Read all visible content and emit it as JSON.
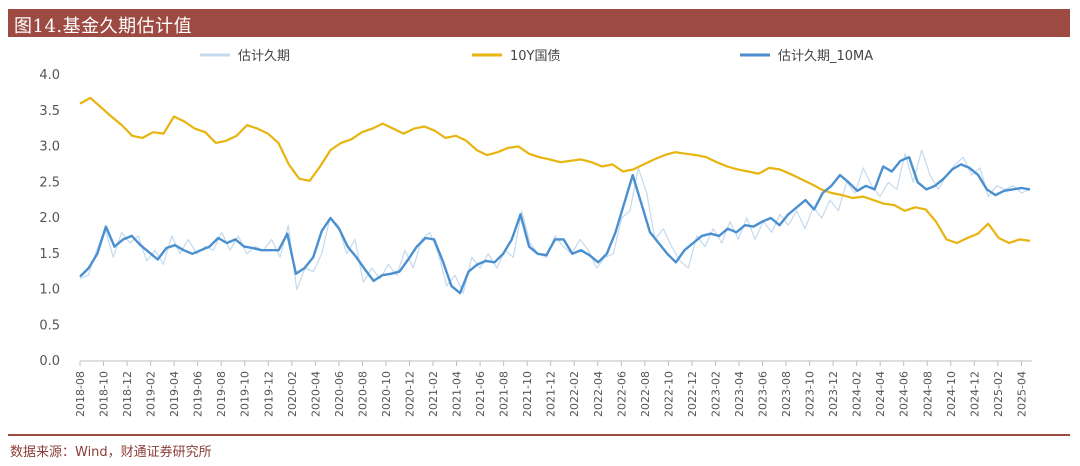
{
  "header": {
    "title": "图14.基金久期估计值"
  },
  "footer": {
    "source": "数据来源：Wind，财通证券研究所"
  },
  "chart_data": {
    "type": "line",
    "title": "图14.基金久期估计值",
    "xlabel": "",
    "ylabel": "",
    "ylim": [
      0,
      4.0
    ],
    "yticks": [
      "0.0",
      "0.5",
      "1.0",
      "1.5",
      "2.0",
      "2.5",
      "3.0",
      "3.5",
      "4.0"
    ],
    "xticks": [
      "2018-08",
      "2018-10",
      "2018-12",
      "2019-02",
      "2019-04",
      "2019-06",
      "2019-08",
      "2019-10",
      "2019-12",
      "2020-02",
      "2020-04",
      "2020-06",
      "2020-08",
      "2020-10",
      "2020-12",
      "2021-02",
      "2021-04",
      "2021-06",
      "2021-08",
      "2021-10",
      "2021-12",
      "2022-02",
      "2022-04",
      "2022-06",
      "2022-08",
      "2022-10",
      "2022-12",
      "2023-02",
      "2023-04",
      "2023-06",
      "2023-08",
      "2023-10",
      "2023-12",
      "2024-02",
      "2024-04",
      "2024-06",
      "2024-08",
      "2024-10",
      "2024-12",
      "2025-02",
      "2025-04"
    ],
    "legend_position": "top",
    "grid": false,
    "x_start": "2018-08",
    "x_end": "2025-05",
    "series": [
      {
        "name": "估计久期",
        "color": "#c5daee",
        "values": [
          1.15,
          1.2,
          1.55,
          1.85,
          1.45,
          1.8,
          1.65,
          1.75,
          1.4,
          1.55,
          1.35,
          1.75,
          1.5,
          1.7,
          1.5,
          1.6,
          1.55,
          1.8,
          1.55,
          1.75,
          1.5,
          1.6,
          1.55,
          1.7,
          1.45,
          1.9,
          1.0,
          1.3,
          1.25,
          1.5,
          2.0,
          1.9,
          1.5,
          1.7,
          1.1,
          1.3,
          1.15,
          1.35,
          1.2,
          1.55,
          1.3,
          1.7,
          1.8,
          1.5,
          1.05,
          1.2,
          0.95,
          1.45,
          1.3,
          1.5,
          1.3,
          1.55,
          1.45,
          2.1,
          1.65,
          1.5,
          1.45,
          1.75,
          1.6,
          1.5,
          1.7,
          1.55,
          1.3,
          1.45,
          1.5,
          2.0,
          2.1,
          2.7,
          2.35,
          1.7,
          1.85,
          1.6,
          1.4,
          1.3,
          1.75,
          1.6,
          1.85,
          1.65,
          1.95,
          1.7,
          2.0,
          1.7,
          1.95,
          1.8,
          2.05,
          1.9,
          2.1,
          1.85,
          2.15,
          2.0,
          2.25,
          2.1,
          2.5,
          2.35,
          2.7,
          2.45,
          2.3,
          2.5,
          2.4,
          2.9,
          2.5,
          2.95,
          2.6,
          2.4,
          2.6,
          2.75,
          2.85,
          2.6,
          2.7,
          2.3,
          2.45,
          2.4,
          2.45,
          2.35,
          2.4
        ]
      },
      {
        "name": "10Y国债",
        "color": "#e8b40f",
        "values": [
          3.6,
          3.68,
          3.55,
          3.42,
          3.3,
          3.15,
          3.12,
          3.2,
          3.18,
          3.42,
          3.35,
          3.25,
          3.2,
          3.05,
          3.08,
          3.15,
          3.3,
          3.25,
          3.18,
          3.05,
          2.75,
          2.55,
          2.52,
          2.72,
          2.95,
          3.05,
          3.1,
          3.2,
          3.25,
          3.32,
          3.25,
          3.18,
          3.25,
          3.28,
          3.22,
          3.12,
          3.15,
          3.08,
          2.95,
          2.88,
          2.92,
          2.98,
          3.0,
          2.9,
          2.85,
          2.82,
          2.78,
          2.8,
          2.82,
          2.78,
          2.72,
          2.75,
          2.65,
          2.68,
          2.75,
          2.82,
          2.88,
          2.92,
          2.9,
          2.88,
          2.85,
          2.78,
          2.72,
          2.68,
          2.65,
          2.62,
          2.7,
          2.68,
          2.62,
          2.55,
          2.48,
          2.4,
          2.35,
          2.32,
          2.28,
          2.3,
          2.25,
          2.2,
          2.18,
          2.1,
          2.15,
          2.12,
          1.95,
          1.7,
          1.65,
          1.72,
          1.78,
          1.92,
          1.72,
          1.65,
          1.7,
          1.68
        ]
      },
      {
        "name": "估计久期_10MA",
        "color": "#4a8fcf",
        "values": [
          1.18,
          1.3,
          1.5,
          1.88,
          1.6,
          1.7,
          1.75,
          1.62,
          1.52,
          1.42,
          1.58,
          1.62,
          1.55,
          1.5,
          1.55,
          1.6,
          1.72,
          1.65,
          1.7,
          1.6,
          1.58,
          1.55,
          1.55,
          1.55,
          1.78,
          1.22,
          1.3,
          1.45,
          1.82,
          2.0,
          1.85,
          1.6,
          1.45,
          1.28,
          1.12,
          1.2,
          1.22,
          1.25,
          1.42,
          1.6,
          1.72,
          1.7,
          1.4,
          1.05,
          0.95,
          1.25,
          1.35,
          1.4,
          1.38,
          1.5,
          1.7,
          2.05,
          1.6,
          1.5,
          1.48,
          1.7,
          1.7,
          1.5,
          1.55,
          1.48,
          1.38,
          1.5,
          1.8,
          2.2,
          2.6,
          2.2,
          1.8,
          1.65,
          1.5,
          1.38,
          1.55,
          1.65,
          1.75,
          1.78,
          1.75,
          1.85,
          1.8,
          1.9,
          1.88,
          1.95,
          2.0,
          1.9,
          2.05,
          2.15,
          2.25,
          2.12,
          2.35,
          2.45,
          2.6,
          2.5,
          2.38,
          2.45,
          2.4,
          2.72,
          2.65,
          2.8,
          2.85,
          2.5,
          2.4,
          2.45,
          2.55,
          2.68,
          2.75,
          2.7,
          2.6,
          2.4,
          2.32,
          2.38,
          2.4,
          2.42,
          2.4
        ]
      }
    ]
  }
}
